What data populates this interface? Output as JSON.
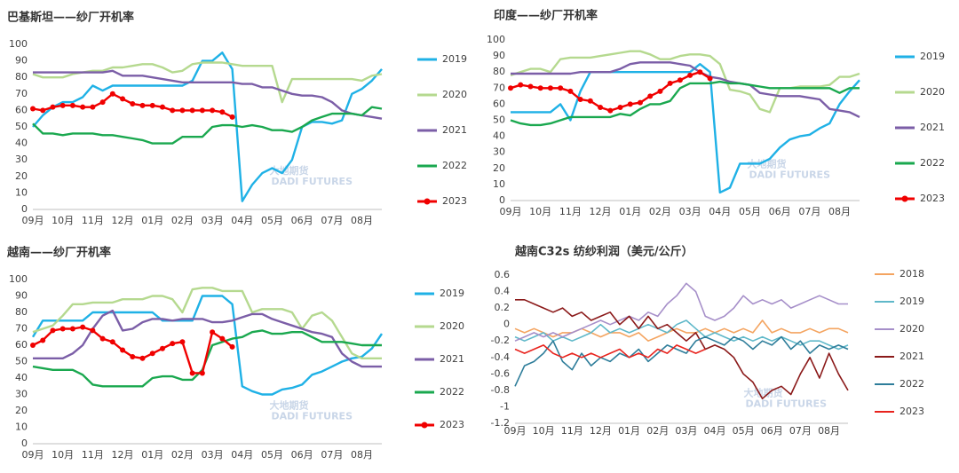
{
  "chart_data": [
    {
      "type": "line",
      "title": "巴基斯坦——纱厂开机率",
      "watermark": "大地期货",
      "watermark_sub": "DADI FUTURES",
      "categories": [
        "09月",
        null,
        null,
        "10月",
        null,
        null,
        "11月",
        null,
        null,
        "12月",
        null,
        null,
        "01月",
        null,
        null,
        "02月",
        null,
        null,
        "03月",
        null,
        null,
        "04月",
        null,
        null,
        "05月",
        null,
        null,
        "06月",
        null,
        null,
        "07月",
        null,
        null,
        "08月",
        null,
        null
      ],
      "ylim": [
        0,
        100
      ],
      "yticks": [
        0,
        10,
        20,
        30,
        40,
        50,
        60,
        70,
        80,
        90,
        100
      ],
      "grid": false,
      "series": [
        {
          "name": "2019",
          "color": "#1fb1e6",
          "values": [
            50,
            57,
            62,
            65,
            65,
            68,
            75,
            72,
            75,
            75,
            75,
            75,
            75,
            75,
            75,
            75,
            78,
            90,
            90,
            95,
            85,
            5,
            15,
            22,
            25,
            22,
            30,
            50,
            53,
            53,
            52,
            54,
            70,
            73,
            78,
            85
          ]
        },
        {
          "name": "2020",
          "color": "#b5d98f",
          "values": [
            82,
            80,
            80,
            80,
            82,
            83,
            84,
            84,
            86,
            86,
            87,
            88,
            88,
            86,
            83,
            84,
            88,
            89,
            89,
            89,
            88,
            87,
            87,
            87,
            87,
            65,
            79,
            79,
            79,
            79,
            79,
            79,
            79,
            78,
            81,
            82
          ]
        },
        {
          "name": "2021",
          "color": "#7b5ea7",
          "values": [
            83,
            83,
            83,
            83,
            83,
            83,
            83,
            83,
            84,
            81,
            81,
            81,
            80,
            79,
            78,
            77,
            77,
            77,
            77,
            77,
            77,
            76,
            76,
            74,
            74,
            72,
            70,
            69,
            69,
            68,
            65,
            60,
            58,
            57,
            56,
            55
          ]
        },
        {
          "name": "2022",
          "color": "#1aa84f",
          "values": [
            52,
            46,
            46,
            45,
            46,
            46,
            46,
            45,
            45,
            44,
            43,
            42,
            40,
            40,
            40,
            44,
            44,
            44,
            50,
            51,
            51,
            50,
            51,
            50,
            48,
            48,
            47,
            50,
            54,
            56,
            58,
            58,
            58,
            57,
            62,
            61
          ]
        },
        {
          "name": "2023",
          "color": "#f00000",
          "marker": true,
          "values": [
            61,
            60,
            62,
            63,
            63,
            62,
            62,
            65,
            70,
            67,
            64,
            63,
            63,
            62,
            60,
            60,
            60,
            60,
            60,
            59,
            56,
            null,
            null,
            null,
            null,
            null,
            null,
            null,
            null,
            null,
            null,
            null,
            null,
            null,
            null,
            null
          ]
        }
      ]
    },
    {
      "type": "line",
      "title": "印度——纱厂开机率",
      "watermark": "大地期货",
      "watermark_sub": "DADI FUTURES",
      "categories": [
        "09月",
        null,
        null,
        "10月",
        null,
        null,
        "11月",
        null,
        null,
        "12月",
        null,
        null,
        "01月",
        null,
        null,
        "02月",
        null,
        null,
        "03月",
        null,
        null,
        "04月",
        null,
        null,
        "05月",
        null,
        null,
        "06月",
        null,
        null,
        "07月",
        null,
        null,
        "08月",
        null,
        null
      ],
      "ylim": [
        0,
        100
      ],
      "yticks": [
        0,
        10,
        20,
        30,
        40,
        50,
        60,
        70,
        80,
        90,
        100
      ],
      "grid": false,
      "series": [
        {
          "name": "2019",
          "color": "#1fb1e6",
          "values": [
            55,
            55,
            55,
            55,
            55,
            60,
            50,
            68,
            80,
            80,
            80,
            80,
            80,
            80,
            80,
            80,
            80,
            80,
            80,
            85,
            80,
            5,
            8,
            23,
            23,
            23,
            26,
            33,
            38,
            40,
            41,
            45,
            48,
            60,
            68,
            75
          ]
        },
        {
          "name": "2020",
          "color": "#b5d98f",
          "values": [
            78,
            80,
            82,
            82,
            80,
            88,
            89,
            89,
            89,
            90,
            91,
            92,
            93,
            93,
            91,
            88,
            88,
            90,
            91,
            91,
            90,
            85,
            69,
            68,
            66,
            57,
            55,
            70,
            70,
            71,
            71,
            71,
            72,
            77,
            77,
            79
          ]
        },
        {
          "name": "2021",
          "color": "#7b5ea7",
          "values": [
            79,
            79,
            79,
            79,
            79,
            79,
            79,
            80,
            80,
            80,
            80,
            82,
            85,
            86,
            86,
            86,
            86,
            85,
            84,
            80,
            77,
            76,
            74,
            73,
            72,
            67,
            66,
            65,
            65,
            65,
            64,
            63,
            57,
            56,
            55,
            52
          ]
        },
        {
          "name": "2022",
          "color": "#1aa84f",
          "values": [
            50,
            48,
            47,
            47,
            48,
            50,
            52,
            52,
            52,
            52,
            52,
            54,
            53,
            57,
            60,
            60,
            62,
            70,
            73,
            73,
            73,
            74,
            73,
            73,
            72,
            71,
            70,
            70,
            70,
            70,
            70,
            70,
            70,
            67,
            70,
            70
          ]
        },
        {
          "name": "2023",
          "color": "#f00000",
          "marker": true,
          "values": [
            70,
            72,
            71,
            70,
            70,
            70,
            68,
            63,
            62,
            58,
            56,
            58,
            60,
            61,
            65,
            68,
            73,
            75,
            78,
            80,
            76,
            null,
            null,
            null,
            null,
            null,
            null,
            null,
            null,
            null,
            null,
            null,
            null,
            null,
            null,
            null
          ]
        }
      ]
    },
    {
      "type": "line",
      "title": "越南——纱厂开机率",
      "watermark": "大地期货",
      "watermark_sub": "DADI FUTURES",
      "categories": [
        "09月",
        null,
        null,
        "10月",
        null,
        null,
        "11月",
        null,
        null,
        "12月",
        null,
        null,
        "01月",
        null,
        null,
        "02月",
        null,
        null,
        "03月",
        null,
        null,
        "04月",
        null,
        null,
        "05月",
        null,
        null,
        "06月",
        null,
        null,
        "07月",
        null,
        null,
        "08月",
        null,
        null
      ],
      "ylim": [
        0,
        100
      ],
      "yticks": [
        0,
        10,
        20,
        30,
        40,
        50,
        60,
        70,
        80,
        90,
        100
      ],
      "grid": false,
      "series": [
        {
          "name": "2019",
          "color": "#1fb1e6",
          "values": [
            65,
            75,
            75,
            75,
            75,
            75,
            80,
            80,
            80,
            80,
            80,
            80,
            80,
            75,
            75,
            75,
            75,
            90,
            90,
            90,
            85,
            35,
            32,
            30,
            30,
            33,
            34,
            36,
            42,
            44,
            47,
            50,
            52,
            53,
            58,
            67
          ]
        },
        {
          "name": "2020",
          "color": "#b5d98f",
          "values": [
            68,
            70,
            72,
            78,
            85,
            85,
            86,
            86,
            86,
            88,
            88,
            88,
            90,
            90,
            88,
            80,
            94,
            95,
            95,
            93,
            93,
            93,
            80,
            82,
            82,
            82,
            80,
            70,
            78,
            80,
            75,
            65,
            55,
            52,
            52,
            52
          ]
        },
        {
          "name": "2021",
          "color": "#7b5ea7",
          "values": [
            52,
            52,
            52,
            52,
            55,
            60,
            70,
            78,
            81,
            69,
            70,
            74,
            76,
            76,
            75,
            76,
            76,
            76,
            74,
            74,
            75,
            77,
            79,
            79,
            76,
            74,
            72,
            70,
            68,
            67,
            65,
            55,
            50,
            47,
            47,
            47
          ]
        },
        {
          "name": "2022",
          "color": "#1aa84f",
          "values": [
            47,
            46,
            45,
            45,
            45,
            42,
            36,
            35,
            35,
            35,
            35,
            35,
            40,
            41,
            41,
            39,
            39,
            45,
            60,
            62,
            64,
            65,
            68,
            69,
            67,
            67,
            68,
            68,
            65,
            62,
            62,
            62,
            61,
            60,
            60,
            60
          ]
        },
        {
          "name": "2023",
          "color": "#f00000",
          "marker": true,
          "values": [
            60,
            63,
            69,
            70,
            70,
            71,
            69,
            64,
            62,
            57,
            53,
            52,
            55,
            58,
            61,
            62,
            43,
            43,
            68,
            64,
            59,
            null,
            null,
            null,
            null,
            null,
            null,
            null,
            null,
            null,
            null,
            null,
            null,
            null,
            null,
            null
          ]
        }
      ]
    },
    {
      "type": "line",
      "title": "越南C32s 纺纱利润（美元/公斤）",
      "watermark": "大地期货",
      "watermark_sub": "DADI FUTURES",
      "categories": [
        "09月",
        null,
        null,
        "10月",
        null,
        null,
        "11月",
        null,
        null,
        "12月",
        null,
        null,
        "01月",
        null,
        null,
        "02月",
        null,
        null,
        "03月",
        null,
        null,
        "04月",
        null,
        null,
        "05月",
        null,
        null,
        "06月",
        null,
        null,
        "07月",
        null,
        null,
        "08月",
        null,
        null
      ],
      "ylim": [
        -1.2,
        0.6
      ],
      "yticks": [
        -1.2,
        -1,
        -0.8,
        -0.6,
        -0.4,
        -0.2,
        0,
        0.2,
        0.4,
        0.6
      ],
      "grid": false,
      "series": [
        {
          "name": "2018",
          "color": "#f4a460",
          "values": [
            -0.05,
            -0.1,
            -0.05,
            -0.1,
            -0.15,
            -0.1,
            -0.1,
            -0.05,
            -0.1,
            -0.15,
            -0.1,
            -0.1,
            -0.15,
            -0.1,
            -0.2,
            -0.15,
            -0.1,
            -0.05,
            -0.1,
            -0.1,
            -0.05,
            -0.1,
            -0.05,
            -0.1,
            -0.05,
            -0.1,
            0.05,
            -0.1,
            -0.05,
            -0.1,
            -0.1,
            -0.05,
            -0.1,
            -0.05,
            -0.05,
            -0.1
          ]
        },
        {
          "name": "2019",
          "color": "#5fb8c9",
          "values": [
            -0.15,
            -0.2,
            -0.15,
            -0.1,
            -0.2,
            -0.15,
            -0.2,
            -0.15,
            -0.1,
            0,
            -0.1,
            -0.05,
            -0.1,
            -0.05,
            0,
            -0.05,
            -0.1,
            0,
            0.05,
            -0.05,
            -0.15,
            -0.1,
            -0.15,
            -0.2,
            -0.15,
            -0.2,
            -0.15,
            -0.2,
            -0.15,
            -0.2,
            -0.25,
            -0.2,
            -0.2,
            -0.25,
            -0.3,
            -0.25
          ]
        },
        {
          "name": "2020",
          "color": "#a68fc9",
          "values": [
            -0.2,
            -0.15,
            -0.1,
            -0.15,
            -0.1,
            -0.15,
            -0.1,
            -0.05,
            0,
            0.05,
            0,
            0.05,
            0.1,
            0.05,
            0.15,
            0.1,
            0.25,
            0.35,
            0.5,
            0.4,
            0.1,
            0.05,
            0.1,
            0.2,
            0.35,
            0.25,
            0.3,
            0.25,
            0.3,
            0.2,
            0.25,
            0.3,
            0.35,
            0.3,
            0.25,
            0.25
          ]
        },
        {
          "name": "2021",
          "color": "#8b1a1a",
          "values": [
            0.3,
            0.3,
            0.25,
            0.2,
            0.15,
            0.2,
            0.1,
            0.15,
            0.05,
            0.1,
            0.15,
            0,
            0.1,
            -0.05,
            0.1,
            -0.05,
            0,
            -0.1,
            -0.2,
            -0.1,
            -0.3,
            -0.25,
            -0.3,
            -0.4,
            -0.6,
            -0.7,
            -0.9,
            -0.8,
            -0.75,
            -0.85,
            -0.6,
            -0.4,
            -0.65,
            -0.35,
            -0.6,
            -0.8
          ]
        },
        {
          "name": "2022",
          "color": "#2e7d9a",
          "values": [
            -0.75,
            -0.5,
            -0.45,
            -0.35,
            -0.2,
            -0.45,
            -0.55,
            -0.35,
            -0.5,
            -0.4,
            -0.45,
            -0.35,
            -0.4,
            -0.3,
            -0.45,
            -0.35,
            -0.25,
            -0.3,
            -0.35,
            -0.2,
            -0.15,
            -0.2,
            -0.25,
            -0.15,
            -0.2,
            -0.3,
            -0.2,
            -0.25,
            -0.15,
            -0.3,
            -0.2,
            -0.35,
            -0.25,
            -0.3,
            -0.25,
            -0.3
          ]
        },
        {
          "name": "2023",
          "color": "#e8231d",
          "values": [
            -0.3,
            -0.35,
            -0.3,
            -0.25,
            -0.35,
            -0.4,
            -0.35,
            -0.4,
            -0.35,
            -0.4,
            -0.35,
            -0.3,
            -0.4,
            -0.35,
            -0.4,
            -0.3,
            -0.35,
            -0.25,
            -0.3,
            -0.35,
            -0.3,
            null,
            null,
            null,
            null,
            null,
            null,
            null,
            null,
            null,
            null,
            null,
            null,
            null,
            null,
            null
          ]
        }
      ]
    }
  ]
}
